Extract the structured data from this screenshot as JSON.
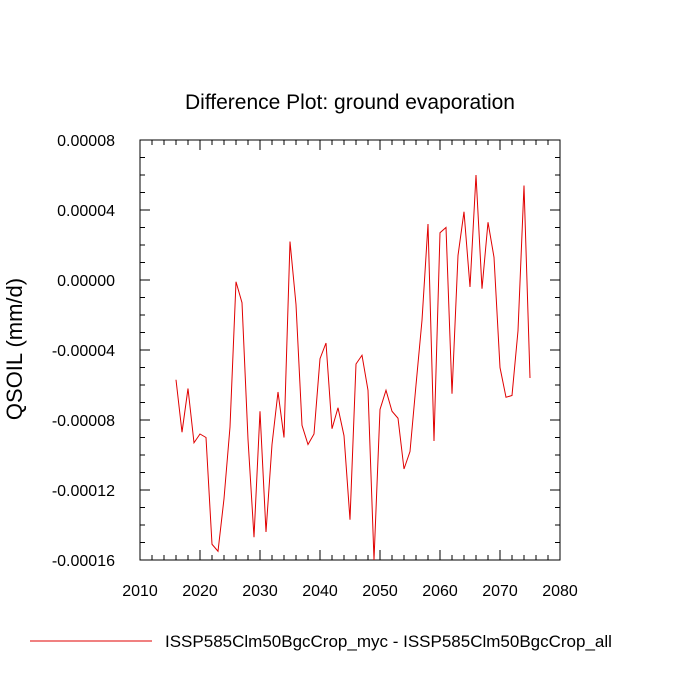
{
  "chart_data": {
    "type": "line",
    "title": "Difference Plot: ground evaporation",
    "xlabel": "",
    "ylabel": "QSOIL  (mm/d)",
    "xlim": [
      2010,
      2080
    ],
    "ylim": [
      -0.00016,
      8e-05
    ],
    "x_ticks": [
      2010,
      2020,
      2030,
      2040,
      2050,
      2060,
      2070,
      2080
    ],
    "x_tick_labels": [
      "2010",
      "2020",
      "2030",
      "2040",
      "2050",
      "2060",
      "2070",
      "2080"
    ],
    "y_ticks": [
      -0.00016,
      -0.00012,
      -8e-05,
      -4e-05,
      0.0,
      4e-05,
      8e-05
    ],
    "y_tick_labels": [
      "-0.00016",
      "-0.00012",
      "-0.00008",
      "-0.00004",
      "0.00000",
      "0.00004",
      "0.00008"
    ],
    "grid": false,
    "legend_position": "bottom",
    "colors": {
      "series": "#e00000",
      "axis": "#000000"
    },
    "series": [
      {
        "name": "ISSP585Clm50BgcCrop_myc - ISSP585Clm50BgcCrop_all",
        "x": [
          2016,
          2017,
          2018,
          2019,
          2020,
          2021,
          2022,
          2023,
          2024,
          2025,
          2026,
          2027,
          2028,
          2029,
          2030,
          2031,
          2032,
          2033,
          2034,
          2035,
          2036,
          2037,
          2038,
          2039,
          2040,
          2041,
          2042,
          2043,
          2044,
          2045,
          2046,
          2047,
          2048,
          2049,
          2050,
          2051,
          2052,
          2053,
          2054,
          2055,
          2056,
          2057,
          2058,
          2059,
          2060,
          2061,
          2062,
          2063,
          2064,
          2065,
          2066,
          2067,
          2068,
          2069,
          2070,
          2071,
          2072,
          2073,
          2074,
          2075
        ],
        "values": [
          -5.7e-05,
          -8.7e-05,
          -6.2e-05,
          -9.3e-05,
          -8.8e-05,
          -9e-05,
          -0.000151,
          -0.000155,
          -0.000125,
          -8.4e-05,
          -1e-06,
          -1.3e-05,
          -9.1e-05,
          -0.000147,
          -7.5e-05,
          -0.000144,
          -9.4e-05,
          -6.4e-05,
          -9e-05,
          2.2e-05,
          -1.4e-05,
          -8.3e-05,
          -9.4e-05,
          -8.8e-05,
          -4.5e-05,
          -3.6e-05,
          -8.5e-05,
          -7.3e-05,
          -8.9e-05,
          -0.000137,
          -4.8e-05,
          -4.3e-05,
          -6.3e-05,
          -0.00016,
          -7.4e-05,
          -6.3e-05,
          -7.5e-05,
          -7.9e-05,
          -0.000108,
          -9.8e-05,
          -6e-05,
          -2.3e-05,
          3.2e-05,
          -9.2e-05,
          2.7e-05,
          3e-05,
          -6.5e-05,
          1.4e-05,
          3.9e-05,
          -4e-06,
          6e-05,
          -5e-06,
          3.3e-05,
          1.3e-05,
          -5e-05,
          -6.7e-05,
          -6.6e-05,
          -2.9e-05,
          5.4e-05,
          -5.6e-05
        ]
      }
    ]
  }
}
